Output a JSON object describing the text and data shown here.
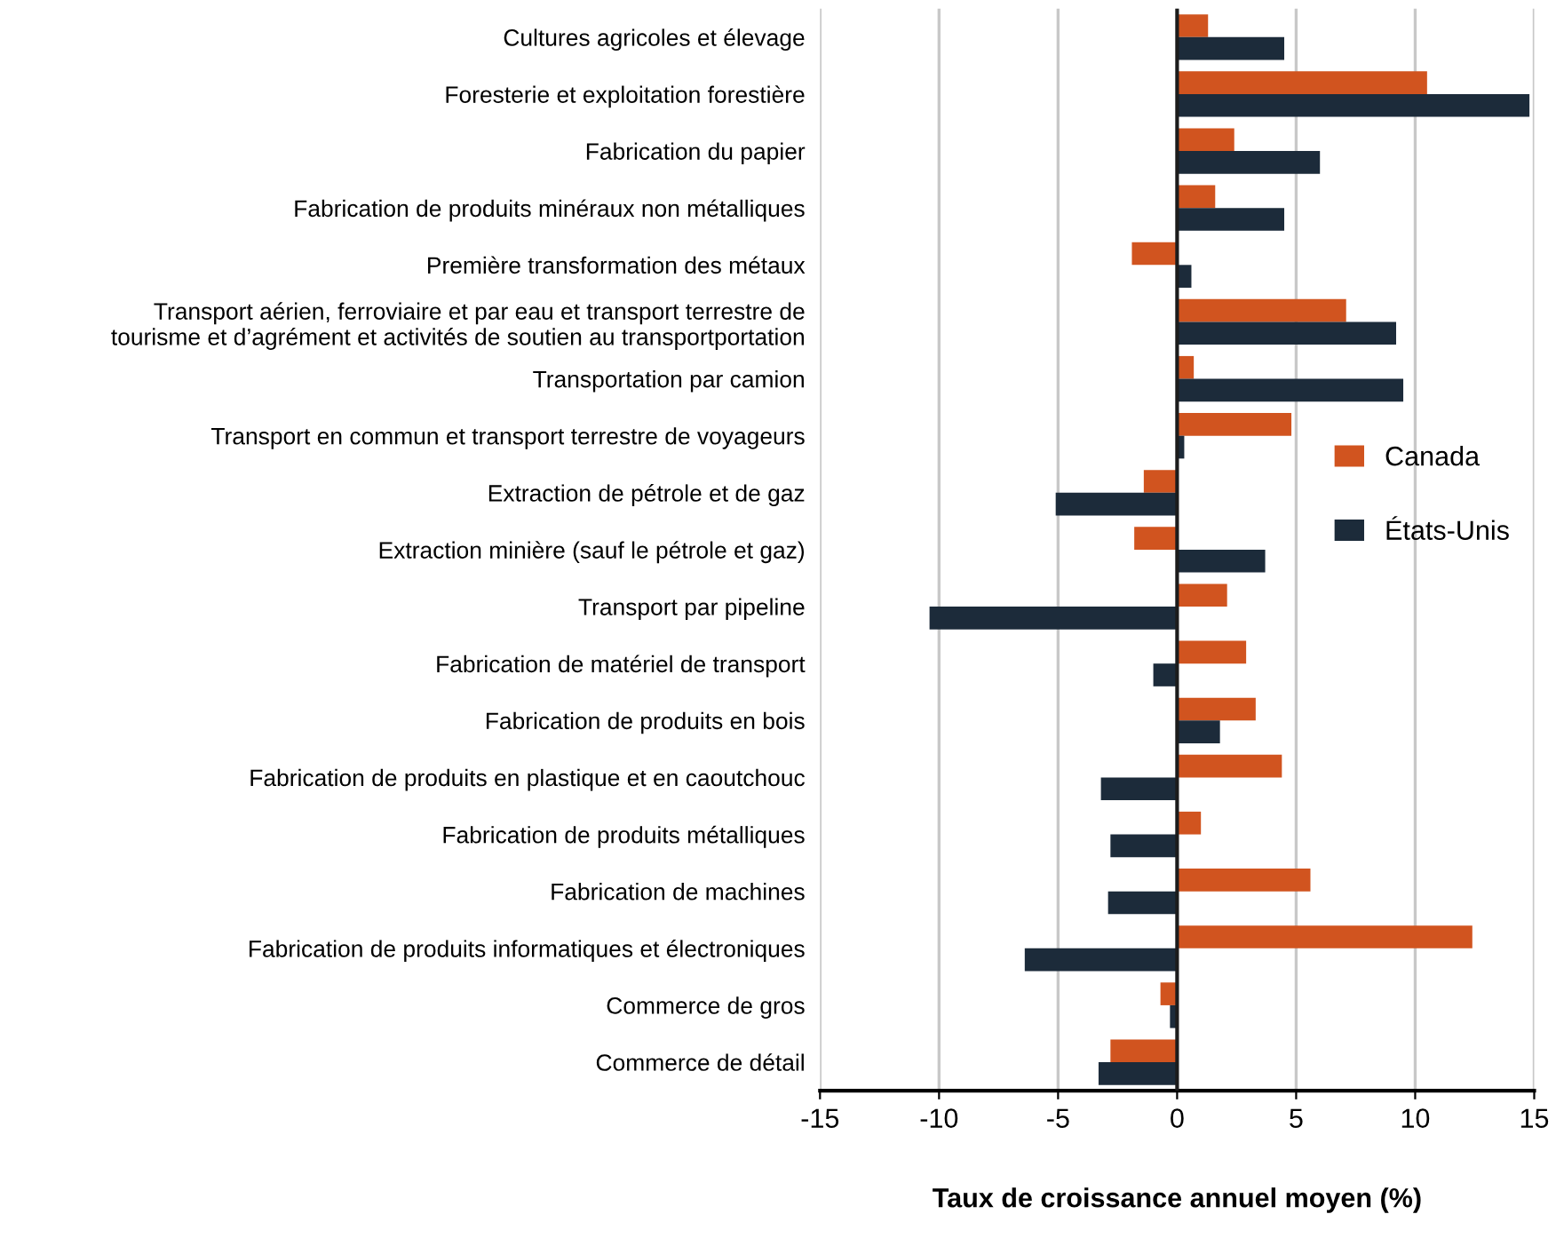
{
  "chart_data": {
    "type": "bar",
    "orientation": "horizontal",
    "xlabel": "Taux de croissance annuel moyen (%)",
    "categories": [
      "Cultures agricoles et élevage",
      "Foresterie et exploitation forestière",
      "Fabrication du papier",
      "Fabrication de produits minéraux non métalliques",
      "Première transformation des métaux",
      "Transport aérien, ferroviaire et par eau et transport terrestre de\ntourisme et d’agrément et activités de soutien au transportportation",
      "Transportation par camion",
      "Transport en commun et transport terrestre de voyageurs",
      "Extraction de pétrole et de gaz",
      "Extraction minière (sauf le pétrole et gaz)",
      "Transport par pipeline",
      "Fabrication de matériel de transport",
      "Fabrication de produits en bois",
      "Fabrication de produits en plastique et en caoutchouc",
      "Fabrication de produits métalliques",
      "Fabrication de machines",
      "Fabrication de produits informatiques et électroniques",
      "Commerce de gros",
      "Commerce de détail"
    ],
    "series": [
      {
        "name": "Canada",
        "color": "#d1541f",
        "values": [
          1.3,
          10.5,
          2.4,
          1.6,
          -1.9,
          7.1,
          0.7,
          4.8,
          -1.4,
          -1.8,
          2.1,
          2.9,
          3.3,
          4.4,
          1.0,
          5.6,
          12.4,
          -0.7,
          -2.8
        ]
      },
      {
        "name": "États-Unis",
        "color": "#1c2b3a",
        "values": [
          4.5,
          14.8,
          6.0,
          4.5,
          0.6,
          9.2,
          9.5,
          0.3,
          -5.1,
          3.7,
          -10.4,
          -1.0,
          1.8,
          -3.2,
          -2.8,
          -2.9,
          -6.4,
          -0.3,
          -3.3
        ]
      }
    ],
    "xlim": [
      -15,
      15
    ],
    "xticks": [
      -15,
      -10,
      -5,
      0,
      5,
      10,
      15
    ],
    "grid": "x",
    "legend": "right"
  }
}
